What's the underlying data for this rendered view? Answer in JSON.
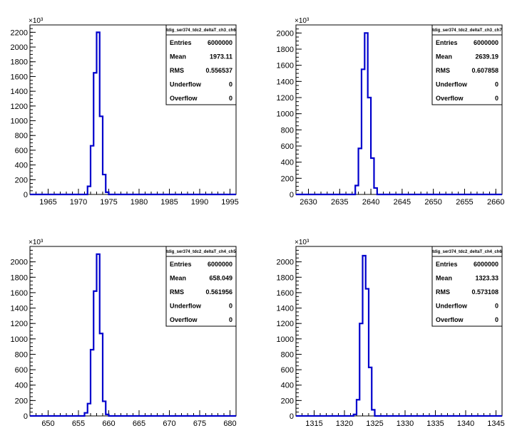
{
  "chart_data": [
    {
      "type": "histogram",
      "y_multiplier": "×10³",
      "xlim": [
        1962,
        1996
      ],
      "ylim": [
        0,
        2300
      ],
      "x_ticks": [
        "1965",
        "1970",
        "1975",
        "1980",
        "1985",
        "1990",
        "1995"
      ],
      "y_ticks": [
        "0",
        "200",
        "400",
        "600",
        "800",
        "1000",
        "1200",
        "1400",
        "1600",
        "1800",
        "2000",
        "2200"
      ],
      "bins": [
        {
          "x0": 1971.0,
          "x1": 1971.5,
          "y": 0
        },
        {
          "x0": 1971.5,
          "y": 20
        },
        {
          "x0": 1971.5,
          "x1": 1972.0,
          "y": 110
        },
        {
          "x0": 1972.0,
          "x1": 1972.5,
          "y": 660
        },
        {
          "x0": 1972.5,
          "x1": 1973.0,
          "y": 1650
        },
        {
          "x0": 1973.0,
          "x1": 1973.5,
          "y": 2200
        },
        {
          "x0": 1973.5,
          "x1": 1974.0,
          "y": 1060
        },
        {
          "x0": 1974.0,
          "x1": 1974.5,
          "y": 270
        },
        {
          "x0": 1974.5,
          "x1": 1975.0,
          "y": 30
        }
      ],
      "stats": {
        "title": "tdig_ser374_tdc2_deltaT_ch3_ch6",
        "rows": [
          {
            "label": "Entries",
            "value": "6000000"
          },
          {
            "label": "Mean",
            "value": "1973.11"
          },
          {
            "label": "RMS",
            "value": "0.556537"
          },
          {
            "label": "Underflow",
            "value": "0"
          },
          {
            "label": "Overflow",
            "value": "0"
          }
        ]
      }
    },
    {
      "type": "histogram",
      "y_multiplier": "×10³",
      "xlim": [
        2628,
        2661
      ],
      "ylim": [
        0,
        2100
      ],
      "x_ticks": [
        "2630",
        "2635",
        "2640",
        "2645",
        "2650",
        "2655",
        "2660"
      ],
      "y_ticks": [
        "0",
        "200",
        "400",
        "600",
        "800",
        "1000",
        "1200",
        "1400",
        "1600",
        "1800",
        "2000"
      ],
      "bins": [
        {
          "x0": 2637.5,
          "x1": 2638.0,
          "y": 110
        },
        {
          "x0": 2638.0,
          "x1": 2638.5,
          "y": 570
        },
        {
          "x0": 2638.5,
          "x1": 2639.0,
          "y": 1550
        },
        {
          "x0": 2639.0,
          "x1": 2639.5,
          "y": 2000
        },
        {
          "x0": 2639.5,
          "x1": 2640.0,
          "y": 1200
        },
        {
          "x0": 2640.0,
          "x1": 2640.5,
          "y": 450
        },
        {
          "x0": 2640.5,
          "x1": 2641.0,
          "y": 80
        }
      ],
      "stats": {
        "title": "tdig_ser374_tdc2_deltaT_ch3_ch7",
        "rows": [
          {
            "label": "Entries",
            "value": "6000000"
          },
          {
            "label": "Mean",
            "value": "2639.19"
          },
          {
            "label": "RMS",
            "value": "0.607858"
          },
          {
            "label": "Underflow",
            "value": "0"
          },
          {
            "label": "Overflow",
            "value": "0"
          }
        ]
      }
    },
    {
      "type": "histogram",
      "y_multiplier": "×10³",
      "xlim": [
        647,
        681
      ],
      "ylim": [
        0,
        2200
      ],
      "x_ticks": [
        "650",
        "655",
        "660",
        "665",
        "670",
        "675",
        "680"
      ],
      "y_ticks": [
        "0",
        "200",
        "400",
        "600",
        "800",
        "1000",
        "1200",
        "1400",
        "1600",
        "1800",
        "2000"
      ],
      "bins": [
        {
          "x0": 656.0,
          "x1": 656.5,
          "y": 40
        },
        {
          "x0": 656.5,
          "x1": 657.0,
          "y": 160
        },
        {
          "x0": 657.0,
          "x1": 657.5,
          "y": 860
        },
        {
          "x0": 657.5,
          "x1": 658.0,
          "y": 1620
        },
        {
          "x0": 658.0,
          "x1": 658.5,
          "y": 2100
        },
        {
          "x0": 658.5,
          "x1": 659.0,
          "y": 1070
        },
        {
          "x0": 659.0,
          "x1": 659.5,
          "y": 190
        },
        {
          "x0": 659.5,
          "x1": 660.0,
          "y": 20
        }
      ],
      "stats": {
        "title": "tdig_ser374_tdc2_deltaT_ch4_ch5",
        "rows": [
          {
            "label": "Entries",
            "value": "6000000"
          },
          {
            "label": "Mean",
            "value": "658.049"
          },
          {
            "label": "RMS",
            "value": "0.561956"
          },
          {
            "label": "Underflow",
            "value": "0"
          },
          {
            "label": "Overflow",
            "value": "0"
          }
        ]
      }
    },
    {
      "type": "histogram",
      "y_multiplier": "×10³",
      "xlim": [
        1312,
        1346
      ],
      "ylim": [
        0,
        2200
      ],
      "x_ticks": [
        "1315",
        "1320",
        "1325",
        "1330",
        "1335",
        "1340",
        "1345"
      ],
      "y_ticks": [
        "0",
        "200",
        "400",
        "600",
        "800",
        "1000",
        "1200",
        "1400",
        "1600",
        "1800",
        "2000"
      ],
      "bins": [
        {
          "x0": 1321.5,
          "x1": 1322.0,
          "y": 20
        },
        {
          "x0": 1322.0,
          "x1": 1322.5,
          "y": 210
        },
        {
          "x0": 1322.5,
          "x1": 1323.0,
          "y": 1200
        },
        {
          "x0": 1323.0,
          "x1": 1323.5,
          "y": 2080
        },
        {
          "x0": 1323.5,
          "x1": 1324.0,
          "y": 1650
        },
        {
          "x0": 1324.0,
          "x1": 1324.5,
          "y": 630
        },
        {
          "x0": 1324.5,
          "x1": 1325.0,
          "y": 80
        }
      ],
      "stats": {
        "title": "tdig_ser374_tdc2_deltaT_ch4_ch6",
        "rows": [
          {
            "label": "Entries",
            "value": "6000000"
          },
          {
            "label": "Mean",
            "value": "1323.33"
          },
          {
            "label": "RMS",
            "value": "0.573108"
          },
          {
            "label": "Underflow",
            "value": "0"
          },
          {
            "label": "Overflow",
            "value": "0"
          }
        ]
      }
    }
  ],
  "style": {
    "line_color": "#0000cc",
    "frame_color": "#000000",
    "background": "#ffffff"
  }
}
